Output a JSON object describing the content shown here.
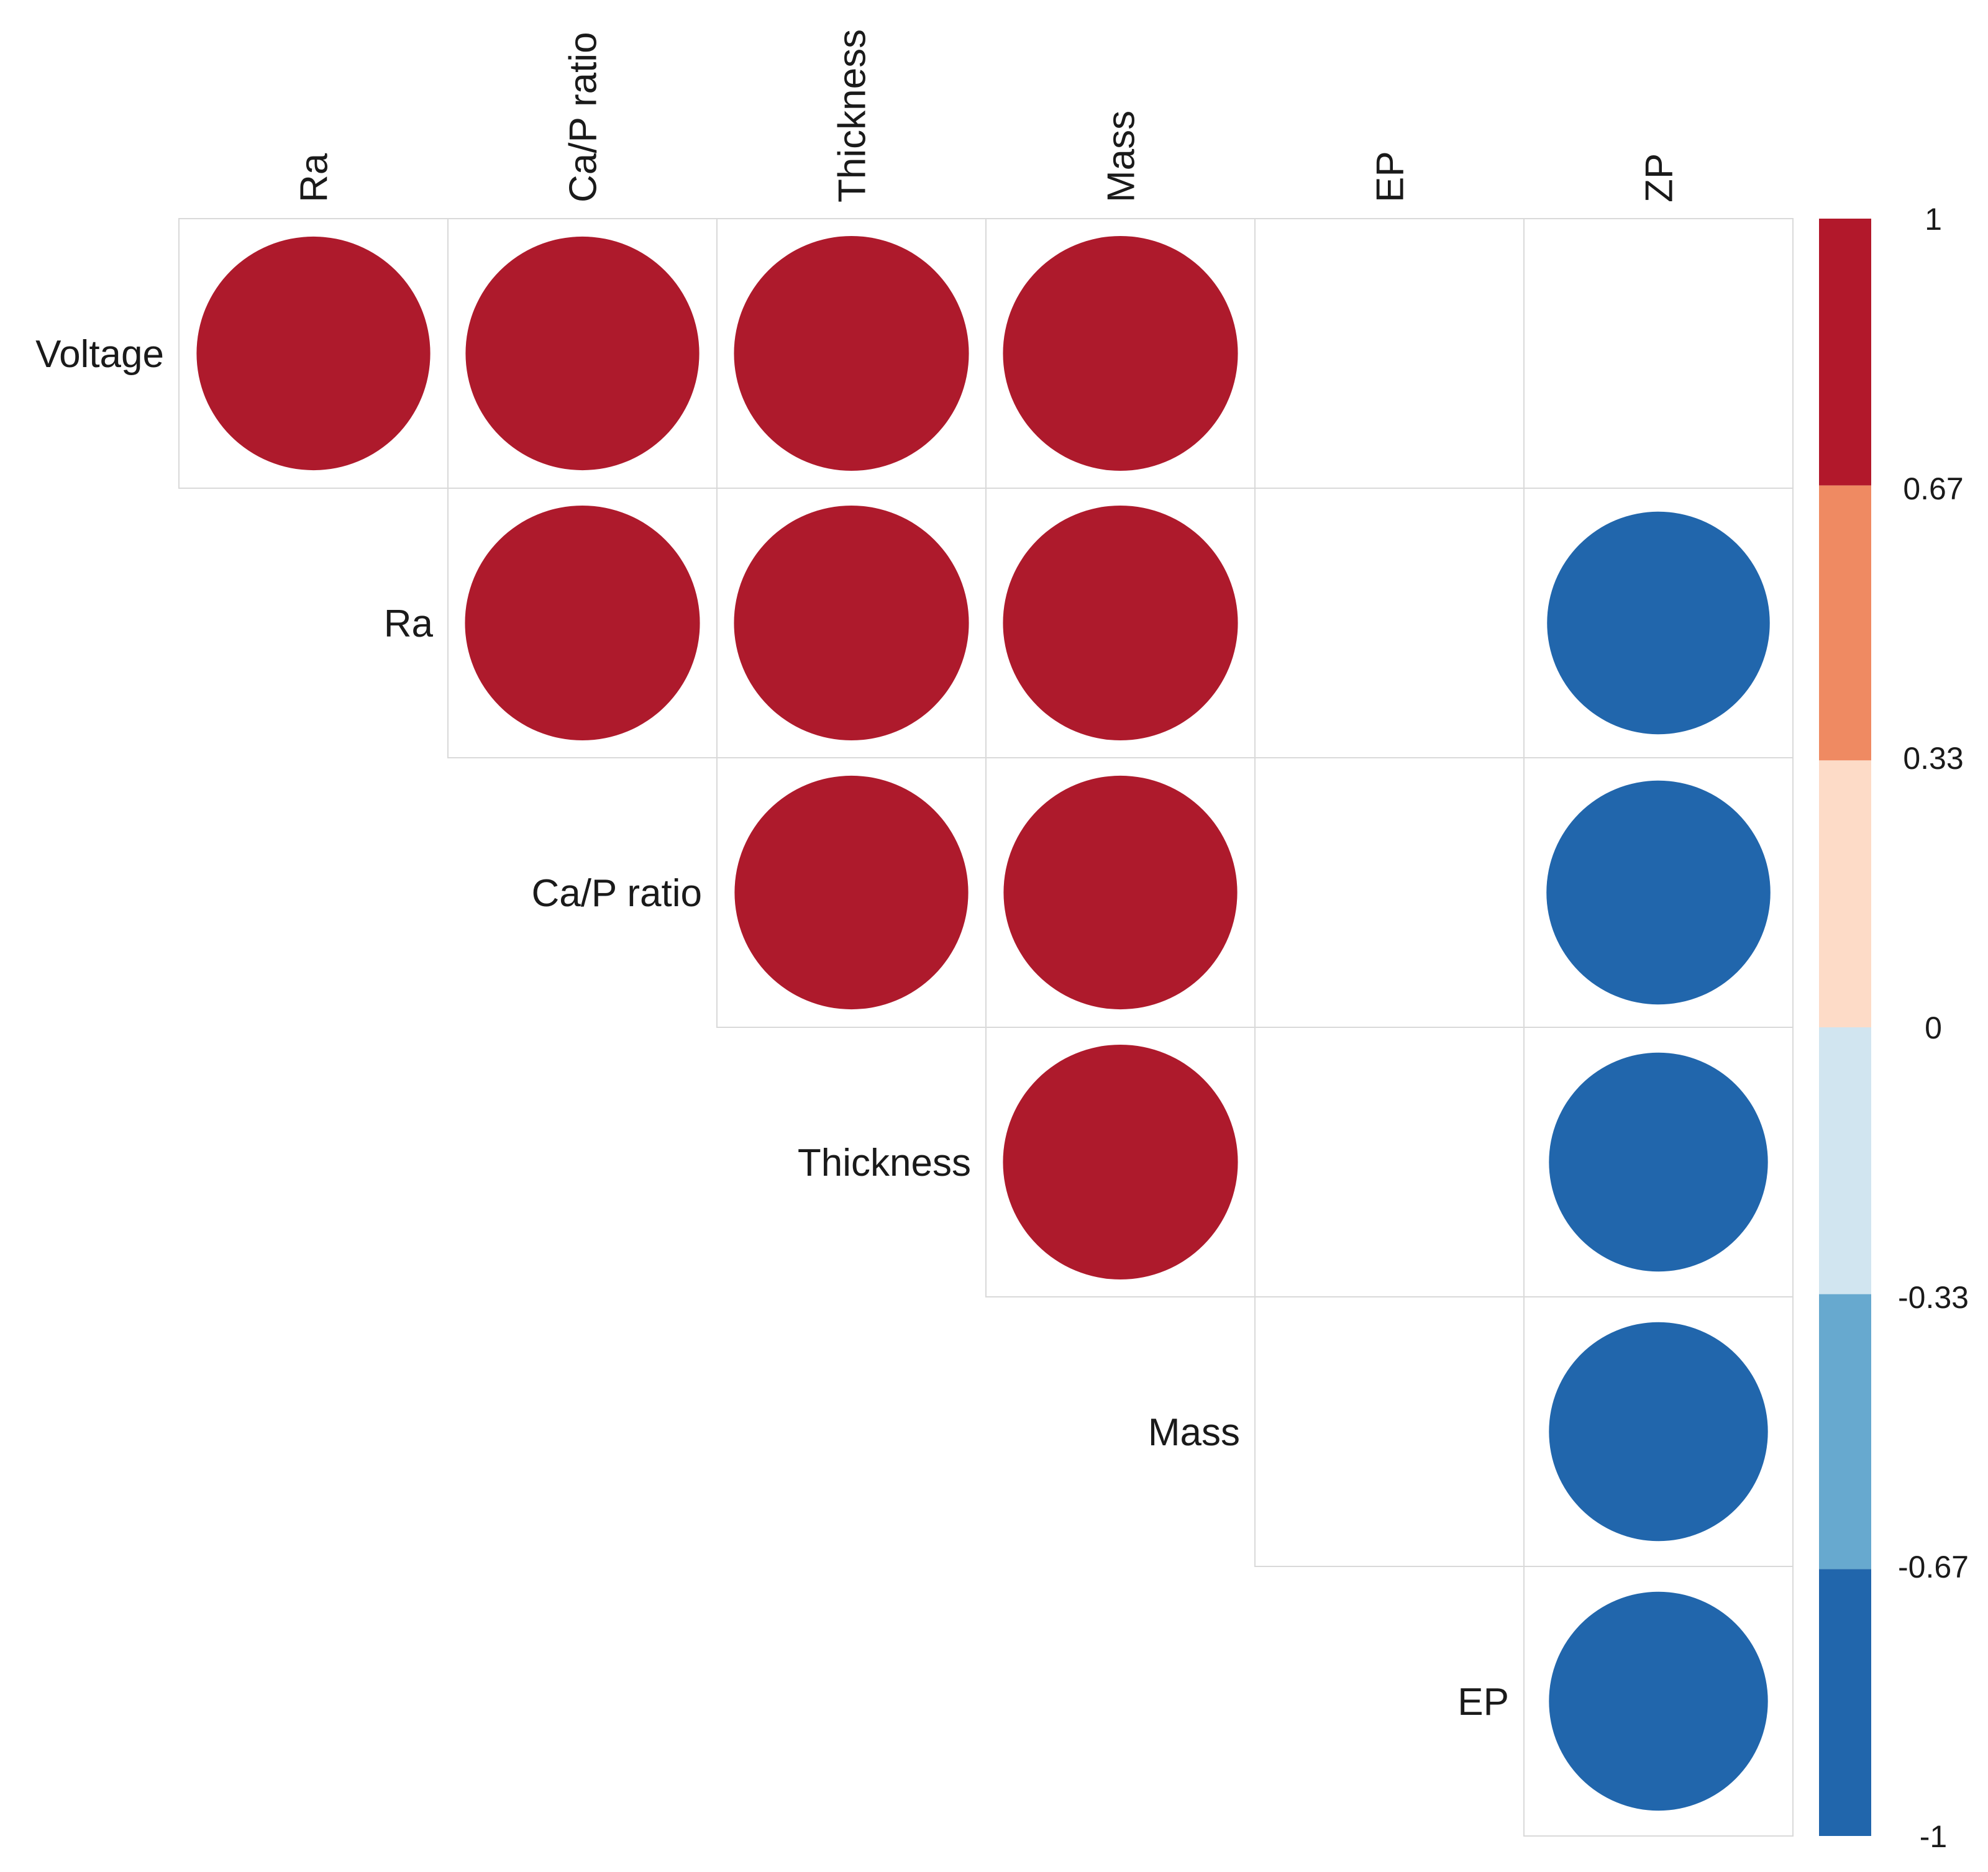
{
  "chart_data": {
    "type": "correlation-matrix",
    "layout": "upper-triangle",
    "row_labels": [
      "Voltage",
      "Ra",
      "Ca/P ratio",
      "Thickness",
      "Mass",
      "EP"
    ],
    "col_labels": [
      "Ra",
      "Ca/P ratio",
      "Thickness",
      "Mass",
      "EP",
      "ZP"
    ],
    "matrix": [
      [
        0.98,
        0.98,
        0.99,
        0.99,
        null,
        null
      ],
      [
        null,
        0.99,
        0.99,
        0.99,
        null,
        -0.89
      ],
      [
        null,
        null,
        0.98,
        0.98,
        null,
        -0.9
      ],
      [
        null,
        null,
        null,
        0.99,
        null,
        -0.86
      ],
      [
        null,
        null,
        null,
        null,
        null,
        -0.86
      ],
      [
        null,
        null,
        null,
        null,
        null,
        -0.86
      ]
    ],
    "colorbar": {
      "min": -1,
      "max": 1,
      "tick_labels": [
        "1",
        "0.67",
        "0.33",
        "0",
        "-0.33",
        "-0.67",
        "-1"
      ],
      "bins": [
        {
          "from": 0.67,
          "to": 1,
          "color": "#b2182b"
        },
        {
          "from": 0.33,
          "to": 0.67,
          "color": "#ef8a62"
        },
        {
          "from": 0,
          "to": 0.33,
          "color": "#fddbc7"
        },
        {
          "from": -0.33,
          "to": 0,
          "color": "#d1e5f0"
        },
        {
          "from": -0.67,
          "to": -0.33,
          "color": "#67a9cf"
        },
        {
          "from": -1,
          "to": -0.67,
          "color": "#2166ac"
        }
      ]
    },
    "colors": {
      "positive": "#ae1a2c",
      "negative": "#2166ac",
      "grid": "#d9d9d9"
    }
  }
}
